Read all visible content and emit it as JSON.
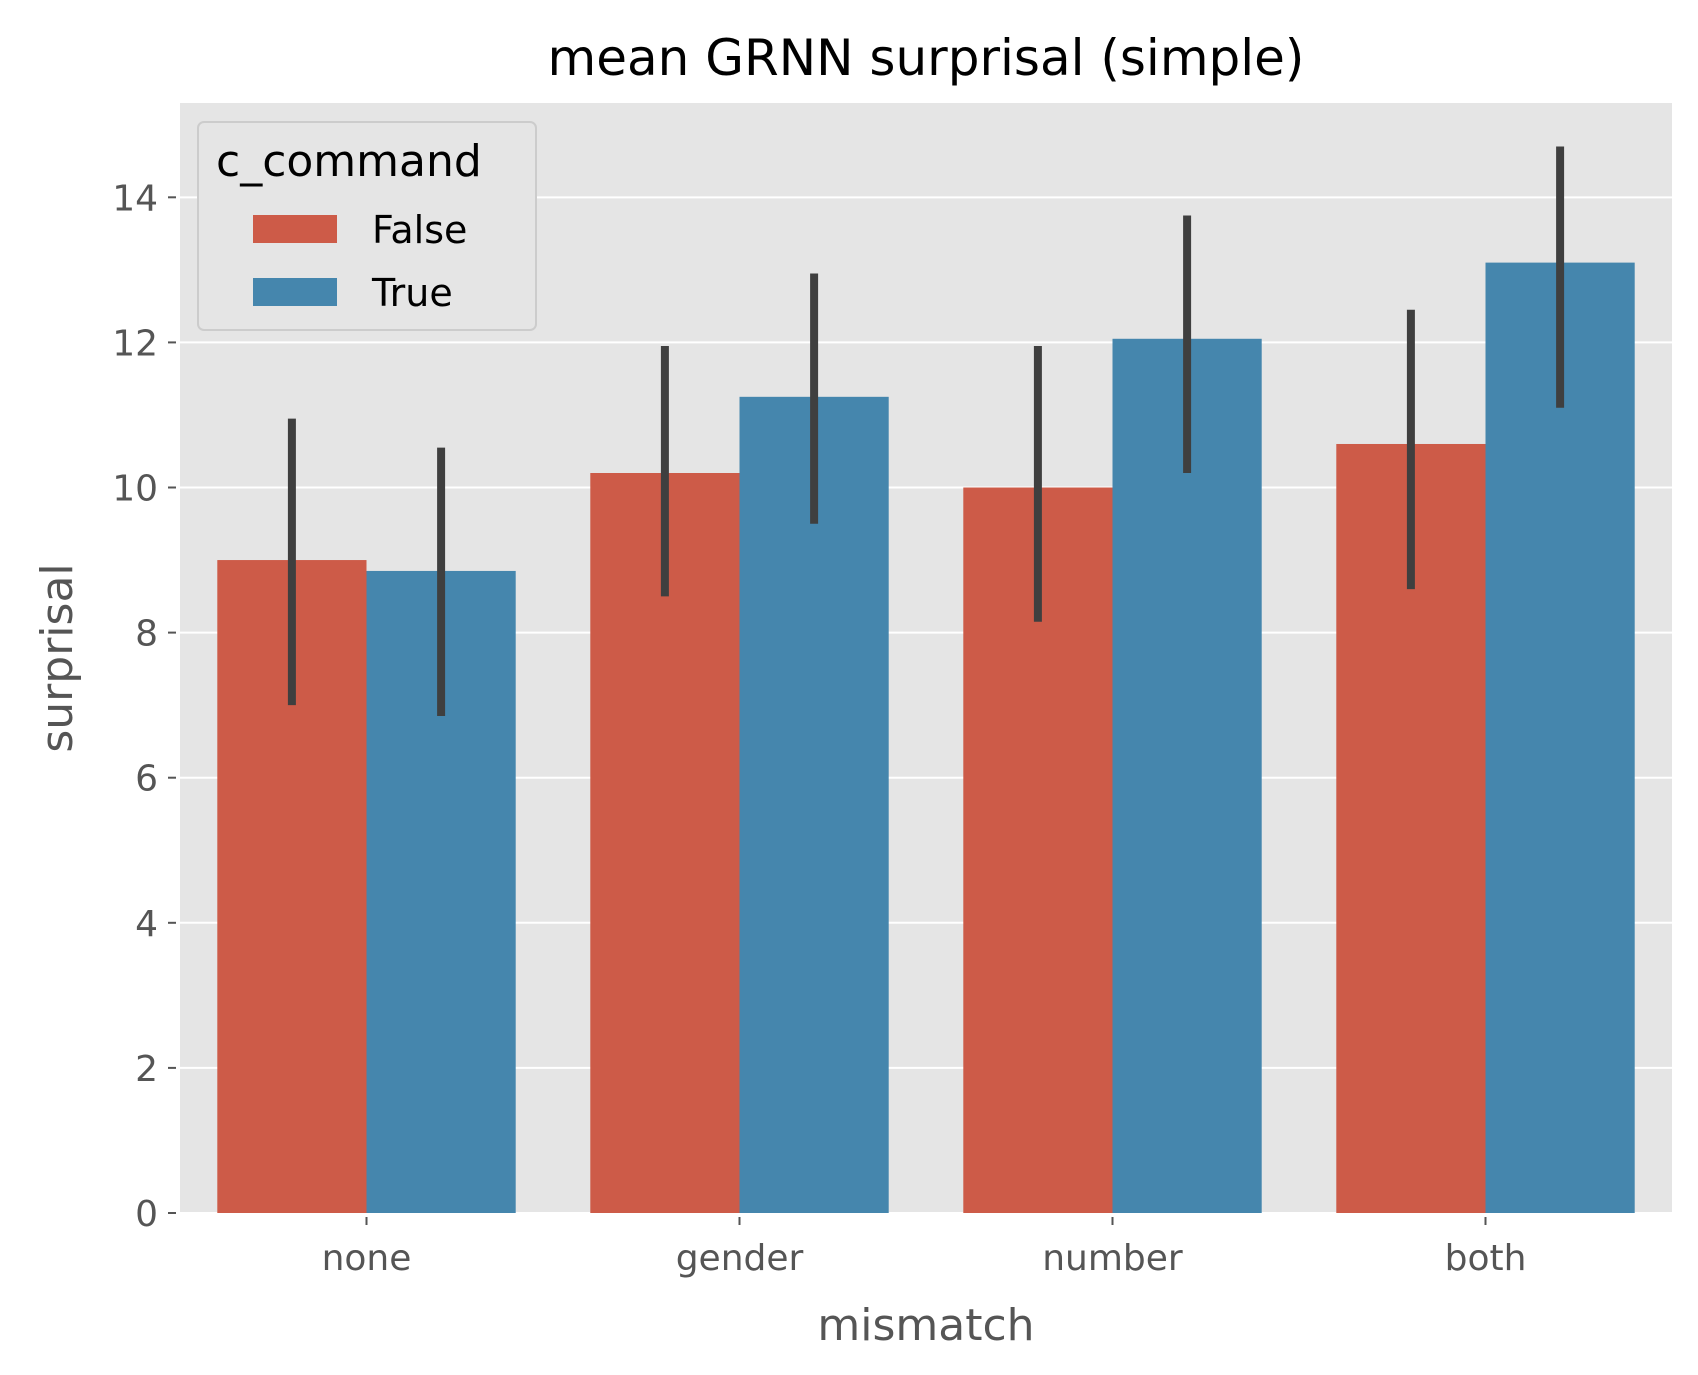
{
  "chart_data": {
    "type": "bar",
    "title": "mean GRNN surprisal (simple)",
    "xlabel": "mismatch",
    "ylabel": "surprisal",
    "categories": [
      "none",
      "gender",
      "number",
      "both"
    ],
    "ylim": [
      0,
      15.3
    ],
    "yticks": [
      0,
      2,
      4,
      6,
      8,
      10,
      12,
      14
    ],
    "grid": true,
    "legend": {
      "title": "c_command",
      "position": "top-left"
    },
    "series": [
      {
        "name": "False",
        "color": "#cd5b48",
        "values": [
          9.0,
          10.2,
          10.0,
          10.6
        ],
        "ci_low": [
          7.0,
          8.5,
          8.15,
          8.6
        ],
        "ci_high": [
          10.95,
          11.95,
          11.95,
          12.45
        ]
      },
      {
        "name": "True",
        "color": "#4586ad",
        "values": [
          8.85,
          11.25,
          12.05,
          13.1
        ],
        "ci_low": [
          6.85,
          9.5,
          10.2,
          11.1
        ],
        "ci_high": [
          10.55,
          12.95,
          13.75,
          14.7
        ]
      }
    ],
    "colors": {
      "background": "#e5e5e5",
      "grid": "#ffffff",
      "errorbar": "#3f3f3f"
    }
  }
}
